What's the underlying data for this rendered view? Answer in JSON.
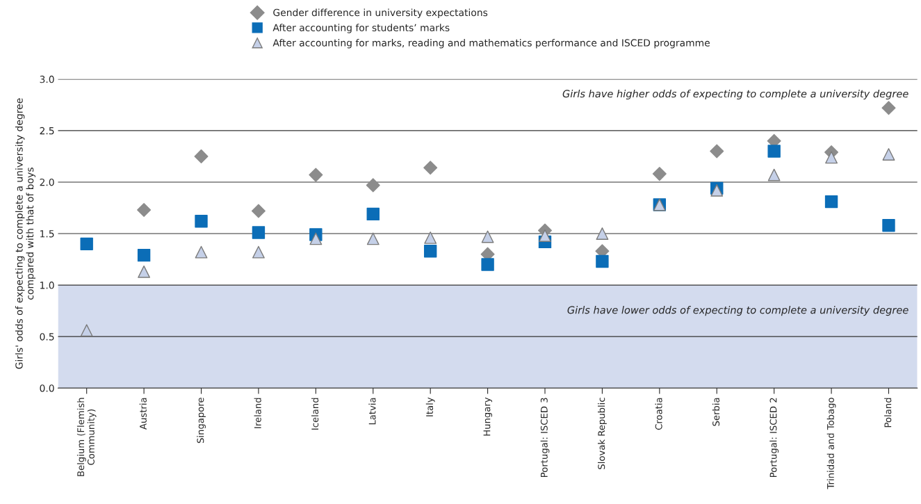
{
  "chart_data": {
    "type": "scatter",
    "ylabel": "Girls' odds of expecting to complete a university degree\ncompared with that of boys",
    "categories": [
      "Belgium (Flemish\nCommunity)",
      "Austria",
      "Singapore",
      "Ireland",
      "Iceland",
      "Latvia",
      "Italy",
      "Hungary",
      "Portugal: ISCED 3",
      "Slovak Republic",
      "Croatia",
      "Serbia",
      "Portugal: ISCED 2",
      "Trinidad and Tobago",
      "Poland"
    ],
    "series": [
      {
        "name": "Gender difference in university expectations",
        "color": "#8c8c8c",
        "marker": "diamond",
        "values": [
          null,
          1.73,
          2.25,
          1.72,
          2.07,
          1.97,
          2.14,
          1.3,
          1.53,
          1.33,
          2.08,
          2.3,
          2.4,
          2.29,
          2.72
        ]
      },
      {
        "name": "After accounting for students’ marks",
        "color": "#0b6db7",
        "marker": "square",
        "values": [
          1.4,
          1.29,
          1.62,
          1.51,
          1.49,
          1.69,
          1.33,
          1.2,
          1.42,
          1.23,
          1.78,
          1.94,
          2.3,
          1.81,
          1.58
        ]
      },
      {
        "name": "After accounting for marks, reading and mathematics performance and ISCED programme",
        "color": "#c5d0e8",
        "marker": "triangle",
        "values": [
          0.56,
          1.13,
          1.32,
          1.32,
          1.45,
          1.45,
          1.46,
          1.47,
          1.48,
          1.5,
          1.78,
          1.92,
          2.07,
          2.24,
          2.27
        ]
      }
    ],
    "ylim": [
      0,
      3
    ],
    "yticks": [
      {
        "value": 0,
        "label": "0.0"
      },
      {
        "value": 0.5,
        "label": "0.5"
      },
      {
        "value": 1,
        "label": "1.0"
      },
      {
        "value": 1.5,
        "label": "1.5"
      },
      {
        "value": 2,
        "label": "2.0"
      },
      {
        "value": 2.5,
        "label": "2.5"
      },
      {
        "value": 3,
        "label": "3.0"
      }
    ],
    "grid": "y",
    "legend": "top",
    "bands": [
      {
        "axis": "y",
        "from": 0,
        "to": 1,
        "color": "#d3dbee"
      }
    ],
    "annotations": [
      "Girls have higher odds of expecting to complete a university degree",
      "Girls have lower odds of expecting to complete a university degree"
    ]
  }
}
